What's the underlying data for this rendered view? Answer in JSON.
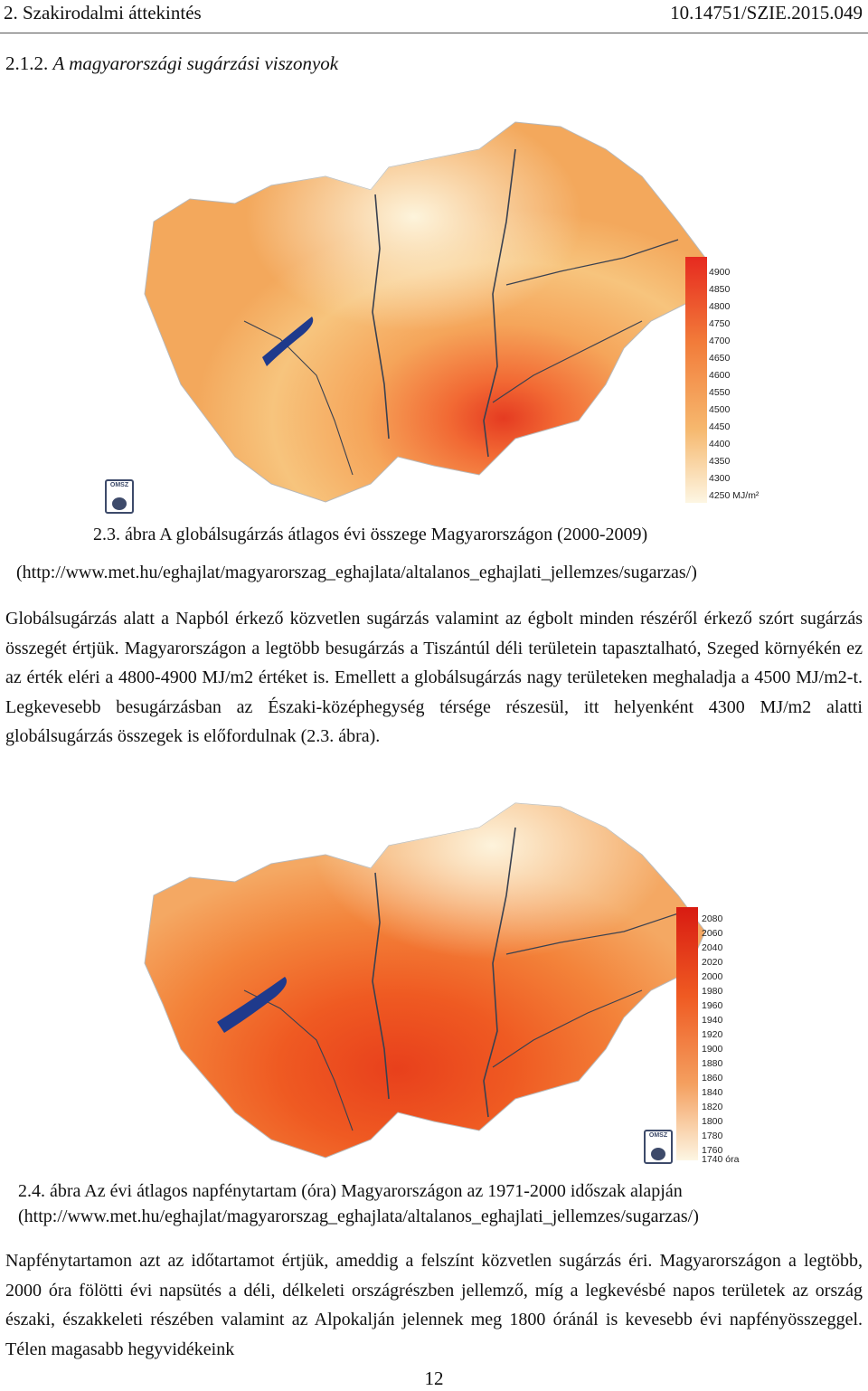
{
  "header": {
    "chapter": "2. Szakirodalmi áttekintés",
    "doi": "10.14751/SZIE.2015.049"
  },
  "section": {
    "number": "2.1.2.",
    "title": "A magyarországi sugárzási viszonyok"
  },
  "figure1": {
    "legend_values": [
      "4900",
      "4850",
      "4800",
      "4750",
      "4700",
      "4650",
      "4600",
      "4550",
      "4500",
      "4450",
      "4400",
      "4350",
      "4300",
      "4250 MJ/m²"
    ],
    "logo_text": "OMSZ",
    "caption_line1": "2.3. ábra A globálsugárzás átlagos évi összege Magyarországon (2000-2009)",
    "caption_line2": "(http://www.met.hu/eghajlat/magyarorszag_eghajlata/altalanos_eghajlati_jellemzes/sugarzas/)"
  },
  "paragraph1": "Globálsugárzás alatt a Napból érkező közvetlen sugárzás valamint az égbolt minden részéről érkező szórt sugárzás összegét értjük. Magyarországon a legtöbb besugárzás a Tiszántúl déli területein tapasztalható, Szeged környékén ez az érték eléri a 4800-4900 MJ/m2 értéket is. Emellett a globálsugárzás nagy területeken meghaladja a 4500 MJ/m2-t. Legkevesebb besugárzásban az Északi-középhegység térsége részesül, itt helyenként 4300 MJ/m2 alatti globálsugárzás összegek is előfordulnak (2.3. ábra).",
  "figure2": {
    "legend_values": [
      "2080",
      "2060",
      "2040",
      "2020",
      "2000",
      "1980",
      "1960",
      "1940",
      "1920",
      "1900",
      "1880",
      "1860",
      "1840",
      "1820",
      "1800",
      "1780",
      "1760",
      "1740 óra"
    ],
    "logo_text": "OMSZ",
    "caption_line1": "2.4. ábra Az évi átlagos napfénytartam (óra) Magyarországon az 1971-2000  időszak alapján",
    "caption_line2": "(http://www.met.hu/eghajlat/magyarorszag_eghajlata/altalanos_eghajlati_jellemzes/sugarzas/)"
  },
  "paragraph2": "Napfénytartamon azt az időtartamot értjük, ameddig a felszínt közvetlen sugárzás éri. Magyarországon a legtöbb, 2000 óra fölötti évi napsütés a déli, délkeleti országrészben jellemző, míg a legkevésbé napos területek az ország északi, északkeleti részében valamint az Alpokalján jelennek meg 1800 óránál is kevesebb évi napfényösszeggel. Télen magasabb hegyvidékeink",
  "page_number": "12"
}
